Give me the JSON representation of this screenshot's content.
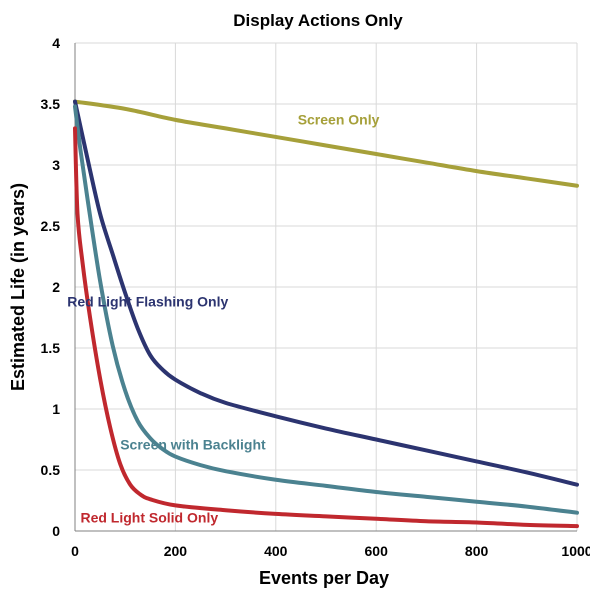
{
  "chart_data": {
    "type": "line",
    "title": "Display Actions Only",
    "xlabel": "Events per Day",
    "ylabel": "Estimated Life (in years)",
    "xlim": [
      0,
      1000
    ],
    "ylim": [
      0,
      4
    ],
    "x_ticks": [
      "0",
      "200",
      "400",
      "600",
      "800",
      "1000"
    ],
    "y_ticks": [
      "0",
      "0.5",
      "1",
      "1.5",
      "2",
      "2.5",
      "3",
      "3.5",
      "4"
    ],
    "grid": true,
    "legend": "none (series labeled inline)",
    "series": [
      {
        "name": "Screen Only",
        "color": "#A6A03A",
        "points": [
          [
            0,
            3.52
          ],
          [
            100,
            3.46
          ],
          [
            200,
            3.37
          ],
          [
            300,
            3.3
          ],
          [
            400,
            3.23
          ],
          [
            500,
            3.16
          ],
          [
            600,
            3.09
          ],
          [
            700,
            3.02
          ],
          [
            800,
            2.95
          ],
          [
            900,
            2.89
          ],
          [
            1000,
            2.83
          ]
        ]
      },
      {
        "name": "Red Light Flashing Only",
        "color": "#2C3470",
        "points": [
          [
            0,
            3.52
          ],
          [
            25,
            3.05
          ],
          [
            50,
            2.6
          ],
          [
            75,
            2.27
          ],
          [
            100,
            1.95
          ],
          [
            125,
            1.66
          ],
          [
            150,
            1.44
          ],
          [
            175,
            1.32
          ],
          [
            200,
            1.24
          ],
          [
            250,
            1.13
          ],
          [
            300,
            1.05
          ],
          [
            400,
            0.94
          ],
          [
            500,
            0.84
          ],
          [
            600,
            0.75
          ],
          [
            700,
            0.66
          ],
          [
            800,
            0.57
          ],
          [
            900,
            0.48
          ],
          [
            1000,
            0.38
          ]
        ]
      },
      {
        "name": "Screen with Backlight",
        "color": "#4B8290",
        "points": [
          [
            0,
            3.48
          ],
          [
            10,
            3.15
          ],
          [
            25,
            2.72
          ],
          [
            50,
            2.05
          ],
          [
            75,
            1.52
          ],
          [
            100,
            1.15
          ],
          [
            125,
            0.9
          ],
          [
            150,
            0.76
          ],
          [
            175,
            0.67
          ],
          [
            200,
            0.61
          ],
          [
            250,
            0.54
          ],
          [
            300,
            0.49
          ],
          [
            400,
            0.42
          ],
          [
            500,
            0.37
          ],
          [
            600,
            0.32
          ],
          [
            700,
            0.28
          ],
          [
            800,
            0.24
          ],
          [
            900,
            0.2
          ],
          [
            1000,
            0.15
          ]
        ]
      },
      {
        "name": "Red Light Solid Only",
        "color": "#C0282E",
        "points": [
          [
            0,
            3.3
          ],
          [
            5,
            2.6
          ],
          [
            15,
            2.2
          ],
          [
            30,
            1.75
          ],
          [
            50,
            1.25
          ],
          [
            70,
            0.85
          ],
          [
            90,
            0.55
          ],
          [
            110,
            0.38
          ],
          [
            130,
            0.3
          ],
          [
            150,
            0.26
          ],
          [
            200,
            0.21
          ],
          [
            300,
            0.17
          ],
          [
            400,
            0.14
          ],
          [
            500,
            0.12
          ],
          [
            600,
            0.1
          ],
          [
            700,
            0.08
          ],
          [
            800,
            0.07
          ],
          [
            900,
            0.05
          ],
          [
            1000,
            0.04
          ]
        ]
      }
    ],
    "annotations": [
      {
        "text": "Screen Only",
        "x": 525,
        "y": 3.33,
        "color": "#A6A03A"
      },
      {
        "text": "Red Light Flashing Only",
        "x": 145,
        "y": 1.84,
        "color": "#2C3470"
      },
      {
        "text": "Screen with Backlight",
        "x": 235,
        "y": 0.67,
        "color": "#4B8290"
      },
      {
        "text": "Red Light Solid Only",
        "x": 148,
        "y": 0.07,
        "color": "#C0282E"
      }
    ]
  }
}
